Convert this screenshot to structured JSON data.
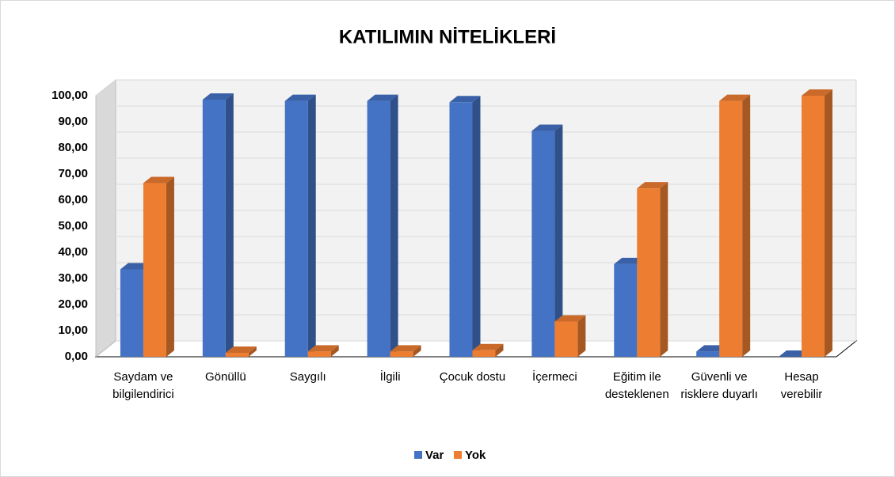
{
  "chart_data": {
    "type": "bar3d",
    "title": "KATILIMIN NİTELİKLERİ",
    "categories": [
      "Saydam ve bilgilendirici",
      "Gönüllü",
      "Saygılı",
      "İlgili",
      "Çocuk dostu",
      "İçermeci",
      "Eğitim ile desteklenen",
      "Güvenli ve risklere duyarlı",
      "Hesap verebilir"
    ],
    "series": [
      {
        "name": "Var",
        "color": "#4472c4",
        "values": [
          33.5,
          98.5,
          98,
          98,
          97.5,
          86.5,
          35.5,
          2,
          0
        ]
      },
      {
        "name": "Yok",
        "color": "#ed7d31",
        "values": [
          66.5,
          1.5,
          2,
          2,
          2.5,
          13.5,
          64.5,
          98,
          100
        ]
      }
    ],
    "ylim": [
      0,
      100
    ],
    "yticks": [
      {
        "value": 0,
        "label": "0,00"
      },
      {
        "value": 10,
        "label": "10,00"
      },
      {
        "value": 20,
        "label": "20,00"
      },
      {
        "value": 30,
        "label": "30,00"
      },
      {
        "value": 40,
        "label": "40,00"
      },
      {
        "value": 50,
        "label": "50,00"
      },
      {
        "value": 60,
        "label": "60,00"
      },
      {
        "value": 70,
        "label": "70,00"
      },
      {
        "value": 80,
        "label": "80,00"
      },
      {
        "value": 90,
        "label": "90,00"
      },
      {
        "value": 100,
        "label": "100,00"
      }
    ],
    "grid": true,
    "legend": "bottom"
  }
}
